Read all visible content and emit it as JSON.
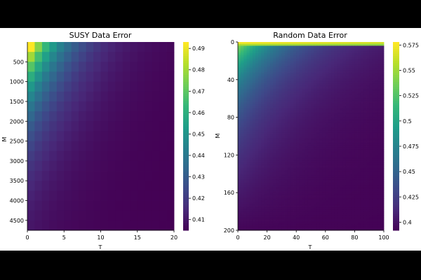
{
  "chart_data": [
    {
      "type": "heatmap",
      "title": "SUSY Data Error",
      "xlabel": "T",
      "ylabel": "M",
      "x_range": [
        0,
        20
      ],
      "y_range": [
        4750,
        0
      ],
      "x_ticks": [
        0,
        5,
        10,
        15,
        20
      ],
      "y_ticks": [
        500,
        1000,
        1500,
        2000,
        2500,
        3000,
        3500,
        4000,
        4500
      ],
      "colorbar": {
        "min": 0.405,
        "max": 0.493,
        "ticks": [
          0.41,
          0.42,
          0.43,
          0.44,
          0.45,
          0.46,
          0.47,
          0.48,
          0.49
        ]
      },
      "colormap": "viridis",
      "grid": {
        "rows": 19,
        "cols": 20
      },
      "description_of_values": "error highest (~0.49) at small T and small M, decaying toward ~0.405 as T and M increase"
    },
    {
      "type": "heatmap",
      "title": "Random Data Error",
      "xlabel": "T",
      "ylabel": "M",
      "x_range": [
        0,
        100
      ],
      "y_range": [
        200,
        0
      ],
      "x_ticks": [
        0,
        20,
        40,
        60,
        80,
        100
      ],
      "y_ticks": [
        0,
        40,
        80,
        120,
        160,
        200
      ],
      "colorbar": {
        "min": 0.392,
        "max": 0.578,
        "ticks": [
          0.4,
          0.425,
          0.45,
          0.475,
          0.5,
          0.525,
          0.55,
          0.575
        ]
      },
      "colormap": "viridis",
      "grid": {
        "rows": 100,
        "cols": 50
      },
      "description_of_values": "error ~0.575 at M near 0, dropping quickly with M and then slowly toward ~0.395 at large T"
    }
  ],
  "colors": {
    "viridis": [
      "#440154",
      "#482878",
      "#3e4989",
      "#31688e",
      "#26828e",
      "#1f9e89",
      "#35b779",
      "#6ece58",
      "#b5de2b",
      "#fde725"
    ]
  }
}
